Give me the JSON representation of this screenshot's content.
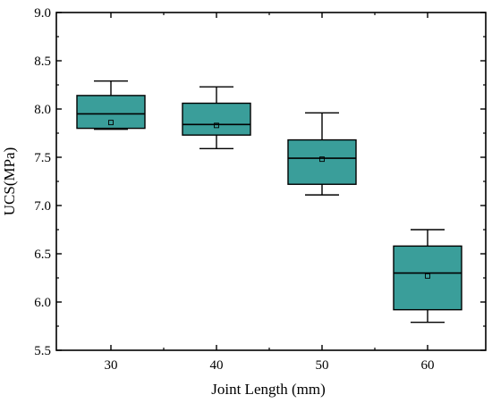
{
  "colors": {
    "box_fill": "#3a9e9a",
    "stroke": "#000000",
    "background": "#ffffff"
  },
  "chart_data": {
    "type": "box",
    "title": "",
    "xlabel": "Joint Length (mm)",
    "ylabel": "UCS(MPa)",
    "categories": [
      "30",
      "40",
      "50",
      "60"
    ],
    "yticks": [
      "5.5",
      "6.0",
      "6.5",
      "7.0",
      "7.5",
      "8.0",
      "8.5",
      "9.0"
    ],
    "ylim": [
      5.5,
      9.0
    ],
    "grid": false,
    "legend": "none",
    "boxes": [
      {
        "category": "30",
        "whisker_low": 7.79,
        "q1": 7.8,
        "median": 7.95,
        "q3": 8.14,
        "whisker_high": 8.29,
        "mean": 7.86
      },
      {
        "category": "40",
        "whisker_low": 7.59,
        "q1": 7.73,
        "median": 7.84,
        "q3": 8.06,
        "whisker_high": 8.23,
        "mean": 7.83
      },
      {
        "category": "50",
        "whisker_low": 7.11,
        "q1": 7.22,
        "median": 7.49,
        "q3": 7.68,
        "whisker_high": 7.96,
        "mean": 7.48
      },
      {
        "category": "60",
        "whisker_low": 5.79,
        "q1": 5.92,
        "median": 6.3,
        "q3": 6.58,
        "whisker_high": 6.75,
        "mean": 6.27
      }
    ]
  }
}
